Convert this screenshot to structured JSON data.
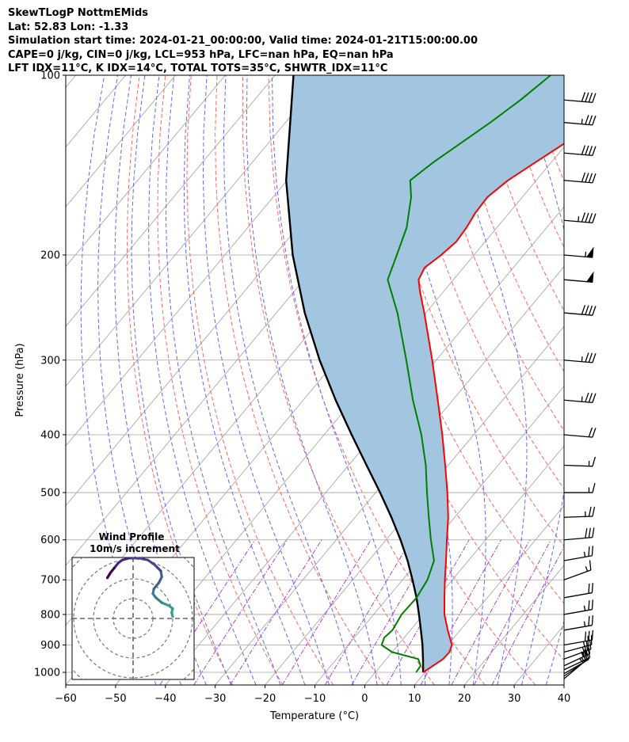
{
  "header": {
    "line1": "SkewTLogP NottmEMids",
    "line2": "Lat: 52.83   Lon: -1.33",
    "line3": "Simulation start time: 2024-01-21_00:00:00, Valid time: 2024-01-21T15:00:00.00",
    "line4": "CAPE=0 j/kg, CIN=0 j/kg, LCL=953 hPa, LFC=nan hPa, EQ=nan hPa",
    "line5": "LFT IDX=11°C, K IDX=14°C, TOTAL TOTS=35°C, SHWTR_IDX=11°C"
  },
  "chart_data": {
    "type": "skewt",
    "xlabel": "Temperature (°C)",
    "ylabel": "Pressure (hPa)",
    "xlim": [
      -60,
      40
    ],
    "plim": [
      1050,
      100
    ],
    "x_ticks": [
      "−60",
      "−50",
      "−40",
      "−30",
      "−20",
      "−10",
      "0",
      "10",
      "20",
      "30",
      "40"
    ],
    "x_tick_values": [
      -60,
      -50,
      -40,
      -30,
      -20,
      -10,
      0,
      10,
      20,
      30,
      40
    ],
    "p_ticks": [
      "1000",
      "900",
      "800",
      "700",
      "600",
      "500",
      "400",
      "300",
      "200",
      "100"
    ],
    "p_tick_values": [
      1000,
      900,
      800,
      700,
      600,
      500,
      400,
      300,
      200,
      100
    ],
    "colors": {
      "temperature": "#ff0000",
      "dewpoint": "#008000",
      "parcel": "#000000",
      "cin_area": "#a2c5e0",
      "isotherm": "#a0a0a0",
      "dry_adiabat": "#ff6666",
      "moist_adiabat": "#6666ff",
      "mixing_ratio": "#aa44cc"
    },
    "series": [
      {
        "name": "Temperature",
        "pressure": [
          1000,
          975,
          950,
          925,
          900,
          850,
          800,
          750,
          700,
          650,
          600,
          550,
          500,
          450,
          400,
          350,
          300,
          270,
          250,
          230,
          220,
          210,
          200,
          190,
          180,
          170,
          160,
          150,
          140,
          130,
          120,
          110,
          100
        ],
        "values": [
          9.6,
          10.5,
          11.4,
          11.5,
          10.8,
          7.5,
          4.2,
          1.4,
          -1.5,
          -4.5,
          -7.8,
          -11.3,
          -15.6,
          -20.6,
          -26.3,
          -33.0,
          -40.8,
          -46.3,
          -50.3,
          -54.8,
          -57.0,
          -57.8,
          -56.6,
          -55.8,
          -56.1,
          -56.8,
          -57.0,
          -55.7,
          -53.2,
          -50.5,
          -50.3,
          -48.4,
          -48.0
        ]
      },
      {
        "name": "Dewpoint",
        "pressure": [
          1000,
          975,
          950,
          925,
          900,
          875,
          850,
          800,
          750,
          700,
          650,
          600,
          550,
          500,
          450,
          400,
          350,
          300,
          250,
          220,
          200,
          180,
          160,
          150,
          140,
          130,
          120,
          110,
          100
        ],
        "values": [
          8.2,
          8.0,
          6.4,
          0.0,
          -3.3,
          -4.0,
          -3.6,
          -4.4,
          -4.2,
          -5.0,
          -6.9,
          -11.0,
          -15.2,
          -19.7,
          -24.5,
          -30.5,
          -38.0,
          -46.0,
          -55.7,
          -63.2,
          -65.5,
          -68.1,
          -72.3,
          -75.3,
          -73.7,
          -71.4,
          -68.9,
          -66.6,
          -64.7
        ]
      },
      {
        "name": "Parcel",
        "pressure": [
          1000,
          953,
          900,
          850,
          800,
          750,
          700,
          650,
          600,
          550,
          500,
          450,
          400,
          350,
          300,
          250,
          200,
          150,
          100
        ],
        "values": [
          9.6,
          7.5,
          4.9,
          2.1,
          -0.9,
          -4.2,
          -8.0,
          -12.2,
          -17.1,
          -22.7,
          -29.1,
          -36.4,
          -44.5,
          -53.5,
          -63.4,
          -74.3,
          -86.4,
          -100.2,
          -116.3
        ]
      }
    ],
    "wind_barbs": {
      "pressure": [
        1025,
        1015,
        1005,
        990,
        975,
        950,
        925,
        900,
        850,
        800,
        750,
        700,
        650,
        600,
        550,
        500,
        450,
        400,
        350,
        300,
        250,
        220,
        200,
        175,
        150,
        135,
        120,
        110
      ],
      "speed_kt": [
        15,
        15,
        20,
        20,
        25,
        25,
        25,
        30,
        25,
        25,
        20,
        15,
        25,
        30,
        25,
        15,
        15,
        20,
        35,
        35,
        40,
        50,
        55,
        45,
        40,
        40,
        35,
        40
      ],
      "direction_deg": [
        230,
        235,
        240,
        245,
        245,
        250,
        255,
        260,
        260,
        260,
        260,
        250,
        260,
        265,
        268,
        270,
        272,
        275,
        275,
        275,
        275,
        275,
        275,
        275,
        275,
        275,
        275,
        275
      ]
    },
    "inset": {
      "title_line1": "Wind Profile",
      "title_line2": "10m/s increment",
      "hodograph_u": [
        4.0,
        3.9,
        4.0,
        3.6,
        2.9,
        2.3,
        2.0,
        2.1,
        2.6,
        2.9,
        2.8,
        2.2,
        1.5,
        0.6,
        -0.4,
        -1.1,
        -1.5,
        -1.9,
        -2.3,
        -2.6
      ],
      "hodograph_v": [
        0.2,
        0.6,
        1.0,
        1.3,
        1.6,
        2.1,
        2.5,
        3.0,
        3.6,
        4.2,
        4.8,
        5.4,
        5.9,
        6.1,
        6.1,
        5.9,
        5.6,
        5.1,
        4.6,
        4.1
      ]
    }
  }
}
